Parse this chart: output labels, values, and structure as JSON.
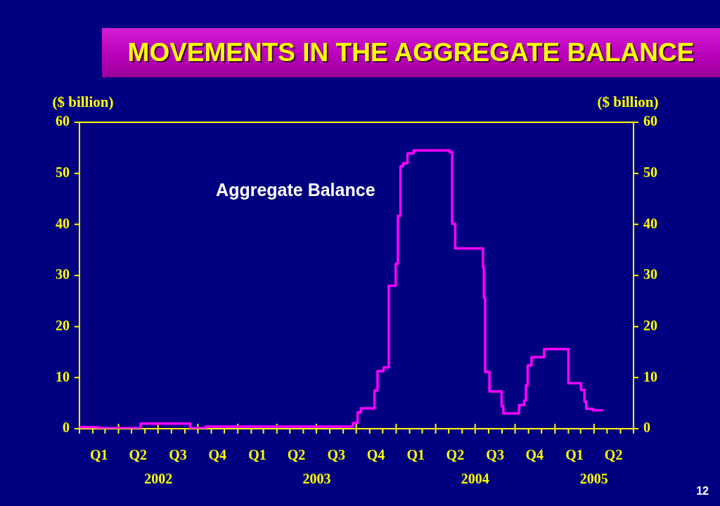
{
  "chart_data": {
    "type": "step",
    "title": "MOVEMENTS IN THE AGGREGATE BALANCE",
    "ylabel": "($ billion)",
    "y2label": "($ billion)",
    "annotations": [
      "12"
    ],
    "xlim": [
      "2002-01-01",
      "2005-07-01"
    ],
    "xticks": [
      {
        "value": "2002-01-01",
        "label": null
      },
      {
        "value": "2002-02-01",
        "label": null
      },
      {
        "value": "2002-02-15",
        "label": "Q1"
      },
      {
        "value": "2002-03-01",
        "label": null
      },
      {
        "value": "2002-04-01",
        "label": null
      },
      {
        "value": "2002-05-01",
        "label": null
      },
      {
        "value": "2002-05-16",
        "label": "Q2"
      },
      {
        "value": "2002-06-01",
        "label": null
      },
      {
        "value": "2002-07-01",
        "label": null
      },
      {
        "value": "2002-08-01",
        "label": null
      },
      {
        "value": "2002-08-16",
        "label": "Q3"
      },
      {
        "value": "2002-09-01",
        "label": null
      },
      {
        "value": "2002-10-01",
        "label": null
      },
      {
        "value": "2002-11-01",
        "label": null
      },
      {
        "value": "2002-11-15",
        "label": "Q4"
      },
      {
        "value": "2002-12-01",
        "label": null
      },
      {
        "value": "2003-01-01",
        "label": null
      },
      {
        "value": "2003-02-01",
        "label": null
      },
      {
        "value": "2003-02-15",
        "label": "Q1"
      },
      {
        "value": "2003-03-01",
        "label": null
      },
      {
        "value": "2003-04-01",
        "label": null
      },
      {
        "value": "2003-05-01",
        "label": null
      },
      {
        "value": "2003-05-16",
        "label": "Q2"
      },
      {
        "value": "2003-06-01",
        "label": null
      },
      {
        "value": "2003-07-01",
        "label": null
      },
      {
        "value": "2003-08-01",
        "label": null
      },
      {
        "value": "2003-08-16",
        "label": "Q3"
      },
      {
        "value": "2003-09-01",
        "label": null
      },
      {
        "value": "2003-10-01",
        "label": null
      },
      {
        "value": "2003-11-01",
        "label": null
      },
      {
        "value": "2003-11-15",
        "label": "Q4"
      },
      {
        "value": "2003-12-01",
        "label": null
      },
      {
        "value": "2004-01-01",
        "label": null
      },
      {
        "value": "2004-02-01",
        "label": null
      },
      {
        "value": "2004-02-15",
        "label": "Q1"
      },
      {
        "value": "2004-03-01",
        "label": null
      },
      {
        "value": "2004-04-01",
        "label": null
      },
      {
        "value": "2004-05-01",
        "label": null
      },
      {
        "value": "2004-05-16",
        "label": "Q2"
      },
      {
        "value": "2004-06-01",
        "label": null
      },
      {
        "value": "2004-07-01",
        "label": null
      },
      {
        "value": "2004-08-01",
        "label": null
      },
      {
        "value": "2004-08-16",
        "label": "Q3"
      },
      {
        "value": "2004-09-01",
        "label": null
      },
      {
        "value": "2004-10-01",
        "label": null
      },
      {
        "value": "2004-11-01",
        "label": null
      },
      {
        "value": "2004-11-15",
        "label": "Q4"
      },
      {
        "value": "2004-12-01",
        "label": null
      },
      {
        "value": "2005-01-01",
        "label": null
      },
      {
        "value": "2005-02-01",
        "label": null
      },
      {
        "value": "2005-02-15",
        "label": "Q1"
      },
      {
        "value": "2005-03-01",
        "label": null
      },
      {
        "value": "2005-04-01",
        "label": null
      },
      {
        "value": "2005-05-01",
        "label": null
      },
      {
        "value": "2005-05-16",
        "label": "Q2"
      },
      {
        "value": "2005-06-01",
        "label": null
      },
      {
        "value": "2005-07-01",
        "label": null
      }
    ],
    "x2lim": [
      "2002-01-01",
      "2005-07-01"
    ],
    "x2ticks": [
      {
        "value": "2002-07-02",
        "label": "2002"
      },
      {
        "value": "2003-07-02",
        "label": "2003"
      },
      {
        "value": "2004-07-01",
        "label": "2004"
      },
      {
        "value": "2005-04-01",
        "label": "2005"
      }
    ],
    "ylim": [
      0,
      60
    ],
    "yticks": [
      0,
      10,
      20,
      30,
      40,
      50,
      60
    ],
    "y2lim": [
      0,
      60
    ],
    "y2ticks": [
      0,
      10,
      20,
      30,
      40,
      50,
      60
    ],
    "grid": false,
    "legend": false,
    "series": [
      {
        "name": "Aggregate Balance",
        "color": "#ff00ff",
        "x": [
          "2002-01-01",
          "2002-02-13",
          "2002-05-22",
          "2002-09-13",
          "2002-10-19",
          "2003-09-23",
          "2003-10-04",
          "2003-10-12",
          "2003-11-12",
          "2003-11-19",
          "2003-12-03",
          "2003-12-15",
          "2003-12-31",
          "2004-01-05",
          "2004-01-11",
          "2004-01-17",
          "2004-01-27",
          "2004-02-10",
          "2004-05-03",
          "2004-05-09",
          "2004-05-16",
          "2004-07-19",
          "2004-07-21",
          "2004-07-24",
          "2004-08-03",
          "2004-08-31",
          "2004-09-04",
          "2004-10-10",
          "2004-10-22",
          "2004-10-26",
          "2004-10-30",
          "2004-11-08",
          "2004-12-07",
          "2005-02-01",
          "2005-03-02",
          "2005-03-10",
          "2005-03-14",
          "2005-03-29",
          "2005-04-19"
        ],
        "values": [
          0.3,
          0.1,
          1.0,
          0.1,
          0.4,
          1.1,
          3.2,
          4.0,
          7.5,
          11.3,
          12.0,
          28.0,
          32.3,
          41.7,
          51.4,
          52.0,
          53.9,
          54.5,
          54.2,
          40.1,
          35.3,
          31.6,
          25.6,
          11.1,
          7.3,
          4.4,
          3.0,
          4.6,
          5.5,
          8.5,
          12.4,
          14.0,
          15.6,
          8.9,
          7.6,
          5.3,
          3.9,
          3.6,
          3.6
        ]
      }
    ]
  }
}
